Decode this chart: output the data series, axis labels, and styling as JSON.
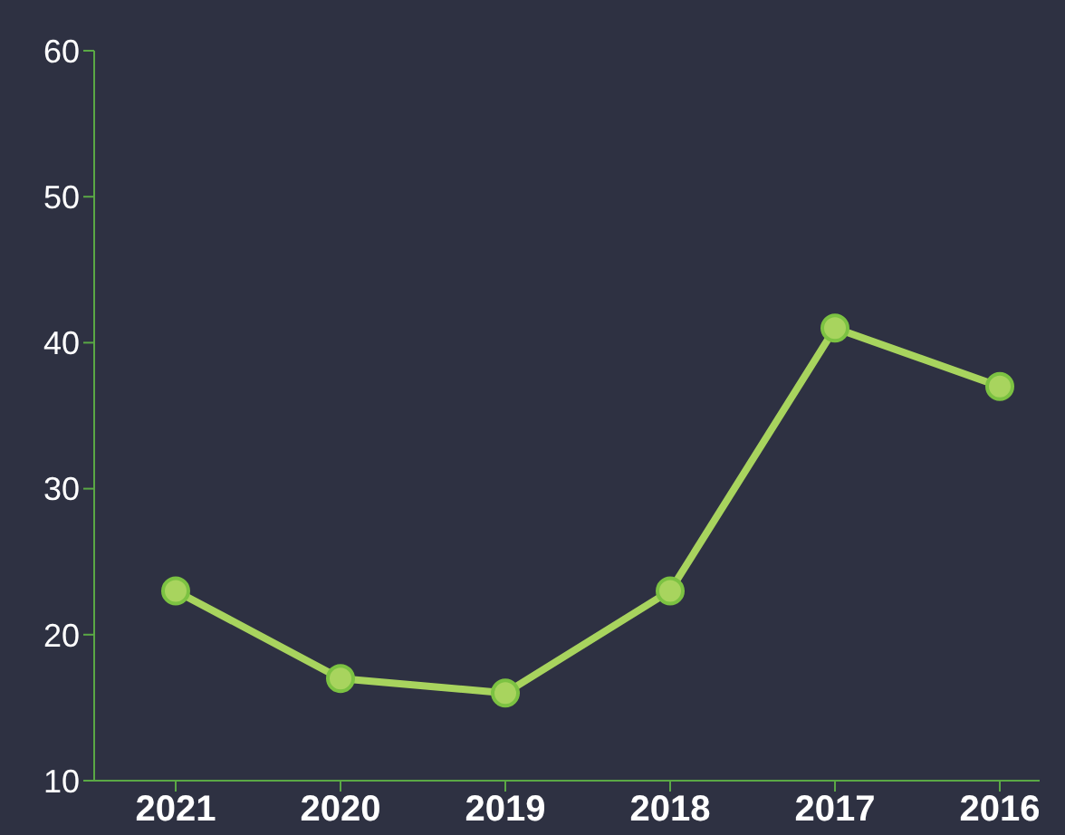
{
  "chart_data": {
    "type": "line",
    "categories": [
      "2021",
      "2020",
      "2019",
      "2018",
      "2017",
      "2016"
    ],
    "series": [
      {
        "color": "#a8d45e",
        "values": [
          23,
          17,
          16,
          23,
          41,
          37
        ]
      }
    ],
    "ylim": [
      10,
      60
    ],
    "yticks": [
      10,
      20,
      30,
      40,
      50,
      60
    ],
    "marker": "circle",
    "line_style": "solid"
  }
}
